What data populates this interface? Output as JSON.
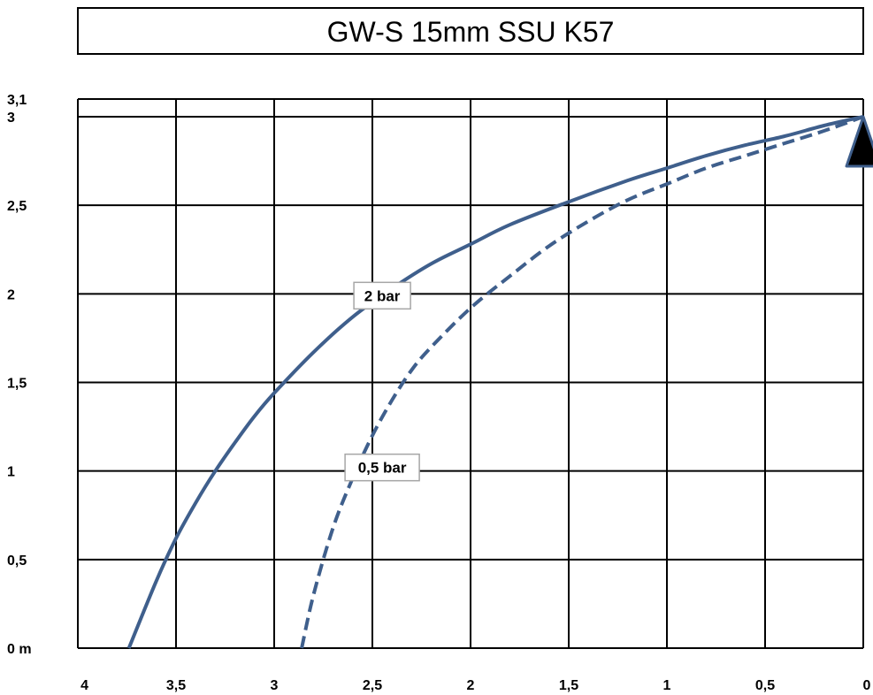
{
  "chart_data": {
    "type": "line",
    "title": "GW-S 15mm SSU K57",
    "xlabel": "",
    "ylabel": "",
    "xlim": [
      4,
      0
    ],
    "x_reversed": true,
    "ylim": [
      0,
      3.1
    ],
    "grid": true,
    "x_ticks": [
      {
        "value": 4,
        "label": "4"
      },
      {
        "value": 3.5,
        "label": "3,5"
      },
      {
        "value": 3,
        "label": "3"
      },
      {
        "value": 2.5,
        "label": "2,5"
      },
      {
        "value": 2,
        "label": "2"
      },
      {
        "value": 1.5,
        "label": "1,5"
      },
      {
        "value": 1,
        "label": "1"
      },
      {
        "value": 0.5,
        "label": "0,5"
      },
      {
        "value": 0,
        "label": "0"
      }
    ],
    "y_ticks": [
      {
        "value": 0,
        "label": "0 m"
      },
      {
        "value": 0.5,
        "label": "0,5"
      },
      {
        "value": 1,
        "label": "1"
      },
      {
        "value": 1.5,
        "label": "1,5"
      },
      {
        "value": 2,
        "label": "2"
      },
      {
        "value": 2.5,
        "label": "2,5"
      },
      {
        "value": 3,
        "label": "3"
      },
      {
        "value": 3.1,
        "label": "3,1"
      }
    ],
    "series": [
      {
        "name": "2 bar",
        "style": "solid",
        "color": "#3f5f8c",
        "x": [
          3.74,
          3.6,
          3.5,
          3.4,
          3.3,
          3.2,
          3.1,
          3.0,
          2.8,
          2.6,
          2.4,
          2.2,
          2.0,
          1.8,
          1.5,
          1.2,
          1.0,
          0.8,
          0.6,
          0.4,
          0.2,
          0.0
        ],
        "y": [
          0.0,
          0.38,
          0.62,
          0.82,
          1.0,
          1.16,
          1.31,
          1.44,
          1.67,
          1.87,
          2.03,
          2.17,
          2.28,
          2.39,
          2.52,
          2.64,
          2.71,
          2.78,
          2.84,
          2.89,
          2.95,
          3.0
        ]
      },
      {
        "name": "0,5 bar",
        "style": "dashed",
        "color": "#3f5f8c",
        "x": [
          2.86,
          2.8,
          2.7,
          2.6,
          2.5,
          2.4,
          2.3,
          2.2,
          2.0,
          1.8,
          1.6,
          1.4,
          1.2,
          1.0,
          0.8,
          0.6,
          0.4,
          0.2,
          0.0
        ],
        "y": [
          0.0,
          0.3,
          0.68,
          0.96,
          1.2,
          1.4,
          1.57,
          1.7,
          1.92,
          2.1,
          2.27,
          2.41,
          2.53,
          2.62,
          2.71,
          2.78,
          2.85,
          2.92,
          3.0
        ]
      }
    ],
    "annotations": [
      {
        "text": "2 bar",
        "series": 0
      },
      {
        "text": "0,5 bar",
        "series": 1
      }
    ],
    "marker": {
      "shape": "triangle",
      "x": 0,
      "y": 3.0,
      "fill": "#000000",
      "stroke": "#3f5f8c"
    }
  }
}
